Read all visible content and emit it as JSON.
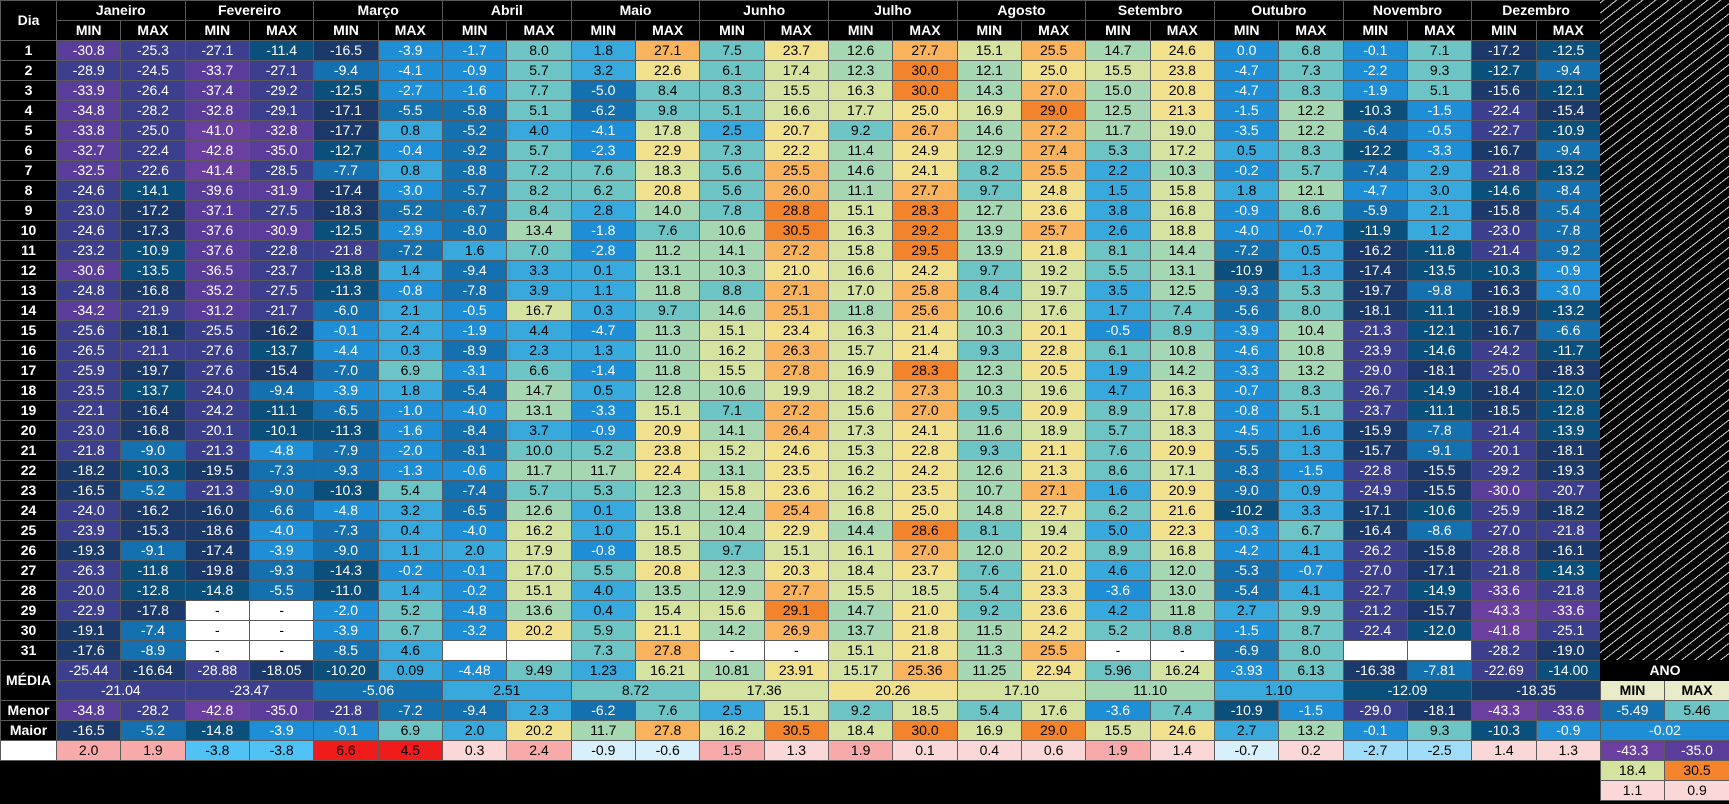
{
  "header": {
    "day_label": "Dia",
    "min_label": "MIN",
    "max_label": "MAX",
    "ano_label": "ANO"
  },
  "months": [
    "Janeiro",
    "Fevereiro",
    "Março",
    "Abril",
    "Maio",
    "Junho",
    "Julho",
    "Agosto",
    "Setembro",
    "Outubro",
    "Novembro",
    "Dezembro"
  ],
  "days": [
    [
      -30.8,
      -25.3,
      -27.1,
      -11.4,
      -16.5,
      -3.9,
      -1.7,
      8.0,
      1.8,
      27.1,
      7.5,
      23.7,
      12.6,
      27.7,
      15.1,
      25.5,
      14.7,
      24.6,
      0.0,
      6.8,
      -0.1,
      7.1,
      -17.2,
      -12.5
    ],
    [
      -28.9,
      -24.5,
      -33.7,
      -27.1,
      -9.4,
      -4.1,
      -0.9,
      5.7,
      3.2,
      22.6,
      6.1,
      17.4,
      12.3,
      30.0,
      12.1,
      25.0,
      15.5,
      23.8,
      -4.7,
      7.3,
      -2.2,
      9.3,
      -12.7,
      -9.4
    ],
    [
      -33.9,
      -26.4,
      -37.4,
      -29.2,
      -12.5,
      -2.7,
      -1.6,
      7.7,
      -5.0,
      8.4,
      8.3,
      15.5,
      16.3,
      30.0,
      14.3,
      27.0,
      15.0,
      20.8,
      -4.7,
      8.3,
      -1.9,
      5.1,
      -15.6,
      -12.1
    ],
    [
      -34.8,
      -28.2,
      -32.8,
      -29.1,
      -17.1,
      -5.5,
      -5.8,
      5.1,
      -6.2,
      9.8,
      5.1,
      16.6,
      17.7,
      25.0,
      16.9,
      29.0,
      12.5,
      21.3,
      -1.5,
      12.2,
      -10.3,
      -1.5,
      -22.4,
      -15.4
    ],
    [
      -33.8,
      -25.0,
      -41.0,
      -32.8,
      -17.7,
      0.8,
      -5.2,
      4.0,
      -4.1,
      17.8,
      2.5,
      20.7,
      9.2,
      26.7,
      14.6,
      27.2,
      11.7,
      19.0,
      -3.5,
      12.2,
      -6.4,
      -0.5,
      -22.7,
      -10.9
    ],
    [
      -32.7,
      -22.4,
      -42.8,
      -35.0,
      -12.7,
      -0.4,
      -9.2,
      5.7,
      -2.3,
      22.9,
      7.3,
      22.2,
      11.4,
      24.9,
      12.9,
      27.4,
      5.3,
      17.2,
      0.5,
      8.3,
      -12.2,
      -3.3,
      -16.7,
      -9.4
    ],
    [
      -32.5,
      -22.6,
      -41.4,
      -28.5,
      -7.7,
      0.8,
      -8.8,
      7.2,
      7.6,
      18.3,
      5.6,
      25.5,
      14.6,
      24.1,
      8.2,
      25.5,
      2.2,
      10.3,
      -0.2,
      5.7,
      -7.4,
      2.9,
      -21.8,
      -13.2
    ],
    [
      -24.6,
      -14.1,
      -39.6,
      -31.9,
      -17.4,
      -3.0,
      -5.7,
      8.2,
      6.2,
      20.8,
      5.6,
      26.0,
      11.1,
      27.7,
      9.7,
      24.8,
      1.5,
      15.8,
      1.8,
      12.1,
      -4.7,
      3.0,
      -14.6,
      -8.4
    ],
    [
      -23.0,
      -17.2,
      -37.1,
      -27.5,
      -18.3,
      -5.2,
      -6.7,
      8.4,
      2.8,
      14.0,
      7.8,
      28.8,
      15.1,
      28.3,
      12.7,
      23.6,
      3.8,
      16.8,
      -0.9,
      8.6,
      -5.9,
      2.1,
      -15.8,
      -5.4
    ],
    [
      -24.6,
      -17.3,
      -37.6,
      -30.9,
      -12.5,
      -2.9,
      -8.0,
      13.4,
      -1.8,
      7.6,
      10.6,
      30.5,
      16.3,
      29.2,
      13.9,
      25.7,
      2.6,
      18.8,
      -4.0,
      -0.7,
      -11.9,
      1.2,
      -23.0,
      -7.8
    ],
    [
      -23.2,
      -10.9,
      -37.6,
      -22.8,
      -21.8,
      -7.2,
      1.6,
      7.0,
      -2.8,
      11.2,
      14.1,
      27.2,
      15.8,
      29.5,
      13.9,
      21.8,
      8.1,
      14.4,
      -7.2,
      0.5,
      -16.2,
      -11.8,
      -21.4,
      -9.2
    ],
    [
      -30.6,
      -13.5,
      -36.5,
      -23.7,
      -13.8,
      1.4,
      -9.4,
      3.3,
      0.1,
      13.1,
      10.3,
      21.0,
      16.6,
      24.2,
      9.7,
      19.2,
      5.5,
      13.1,
      -10.9,
      1.3,
      -17.4,
      -13.5,
      -10.3,
      -0.9
    ],
    [
      -24.8,
      -16.8,
      -35.2,
      -27.5,
      -11.3,
      -0.8,
      -7.8,
      3.9,
      1.1,
      11.8,
      8.8,
      27.1,
      17.0,
      25.8,
      8.4,
      19.7,
      3.5,
      12.5,
      -9.3,
      5.3,
      -19.7,
      -9.8,
      -16.3,
      -3.0
    ],
    [
      -34.2,
      -21.9,
      -31.2,
      -21.7,
      -6.0,
      2.1,
      -0.5,
      16.7,
      0.3,
      9.7,
      14.6,
      25.1,
      11.8,
      25.6,
      10.6,
      17.6,
      1.7,
      7.4,
      -5.6,
      8.0,
      -18.1,
      -11.1,
      -18.9,
      -13.2
    ],
    [
      -25.6,
      -18.1,
      -25.5,
      -16.2,
      -0.1,
      2.4,
      -1.9,
      4.4,
      -4.7,
      11.3,
      15.1,
      23.4,
      16.3,
      21.4,
      10.3,
      20.1,
      -0.5,
      8.9,
      -3.9,
      10.4,
      -21.3,
      -12.1,
      -16.7,
      -6.6
    ],
    [
      -26.5,
      -21.1,
      -27.6,
      -13.7,
      -4.4,
      0.3,
      -8.9,
      2.3,
      1.3,
      11.0,
      16.2,
      26.3,
      15.7,
      21.4,
      9.3,
      22.8,
      6.1,
      10.8,
      -4.6,
      10.8,
      -23.9,
      -14.6,
      -24.2,
      -11.7
    ],
    [
      -25.9,
      -19.7,
      -27.6,
      -15.4,
      -7.0,
      6.9,
      -3.1,
      6.6,
      -1.4,
      11.8,
      15.5,
      27.8,
      16.9,
      28.3,
      12.3,
      20.5,
      1.9,
      14.2,
      -3.3,
      13.2,
      -29.0,
      -18.1,
      -25.0,
      -18.3
    ],
    [
      -23.5,
      -13.7,
      -24.0,
      -9.4,
      -3.9,
      1.8,
      -5.4,
      14.7,
      0.5,
      12.8,
      10.6,
      19.9,
      18.2,
      27.3,
      10.3,
      19.6,
      4.7,
      16.3,
      -0.7,
      8.3,
      -26.7,
      -14.9,
      -18.4,
      -12.0
    ],
    [
      -22.1,
      -16.4,
      -24.2,
      -11.1,
      -6.5,
      -1.0,
      -4.0,
      13.1,
      -3.3,
      15.1,
      7.1,
      27.2,
      15.6,
      27.0,
      9.5,
      20.9,
      8.9,
      17.8,
      -0.8,
      5.1,
      -23.7,
      -11.1,
      -18.5,
      -12.8
    ],
    [
      -23.0,
      -16.8,
      -20.1,
      -10.1,
      -11.3,
      -1.6,
      -8.4,
      3.7,
      -0.9,
      20.9,
      14.1,
      26.4,
      17.3,
      24.1,
      11.6,
      18.9,
      5.7,
      18.3,
      -4.5,
      1.6,
      -15.9,
      -7.8,
      -21.4,
      -13.9
    ],
    [
      -21.8,
      -9.0,
      -21.3,
      -4.8,
      -7.9,
      -2.0,
      -8.1,
      10.0,
      5.2,
      23.8,
      15.2,
      24.6,
      15.3,
      22.8,
      9.3,
      21.1,
      7.6,
      20.9,
      -5.5,
      1.3,
      -15.7,
      -9.1,
      -20.1,
      -18.1
    ],
    [
      -18.2,
      -10.3,
      -19.5,
      -7.3,
      -9.3,
      -1.3,
      -0.6,
      11.7,
      11.7,
      22.4,
      13.1,
      23.5,
      16.2,
      24.2,
      12.6,
      21.3,
      8.6,
      17.1,
      -8.3,
      -1.5,
      -22.8,
      -15.5,
      -29.2,
      -19.3
    ],
    [
      -16.5,
      -5.2,
      -21.3,
      -9.0,
      -10.3,
      5.4,
      -7.4,
      5.7,
      5.3,
      12.3,
      15.8,
      23.6,
      16.2,
      23.5,
      10.7,
      27.1,
      1.6,
      20.9,
      -9.0,
      0.9,
      -24.9,
      -15.5,
      -30.0,
      -20.7
    ],
    [
      -24.0,
      -16.2,
      -16.0,
      -6.6,
      -4.8,
      3.2,
      -6.5,
      12.6,
      0.1,
      13.8,
      12.4,
      25.4,
      16.8,
      25.0,
      14.8,
      22.7,
      6.2,
      21.6,
      -10.2,
      3.3,
      -17.1,
      -10.6,
      -25.9,
      -18.2
    ],
    [
      -23.9,
      -15.3,
      -18.6,
      -4.0,
      -7.3,
      0.4,
      -4.0,
      16.2,
      1.0,
      15.1,
      10.4,
      22.9,
      14.4,
      28.6,
      8.1,
      19.4,
      5.0,
      22.3,
      -0.3,
      6.7,
      -16.4,
      -8.6,
      -27.0,
      -21.8
    ],
    [
      -19.3,
      -9.1,
      -17.4,
      -3.9,
      -9.0,
      1.1,
      2.0,
      17.9,
      -0.8,
      18.5,
      9.7,
      15.1,
      16.1,
      27.0,
      12.0,
      20.2,
      8.9,
      16.8,
      -4.2,
      4.1,
      -26.2,
      -15.8,
      -28.8,
      -16.1
    ],
    [
      -26.3,
      -11.8,
      -19.8,
      -9.3,
      -14.3,
      -0.2,
      -0.1,
      17.0,
      5.5,
      20.8,
      12.3,
      20.3,
      18.4,
      23.7,
      7.6,
      21.0,
      4.6,
      12.0,
      -5.3,
      -0.7,
      -27.0,
      -17.1,
      -21.8,
      -14.3
    ],
    [
      -20.0,
      -12.8,
      -14.8,
      -5.5,
      -11.0,
      1.4,
      -0.2,
      15.1,
      4.0,
      13.5,
      12.9,
      27.7,
      15.5,
      18.5,
      5.4,
      23.3,
      -3.6,
      13.0,
      -5.4,
      4.1,
      -22.7,
      -14.9,
      -33.6,
      -21.8
    ],
    [
      -22.9,
      -17.8,
      "-",
      "-",
      -2.0,
      5.2,
      -4.8,
      13.6,
      0.4,
      15.4,
      15.6,
      29.1,
      14.7,
      21.0,
      9.2,
      23.6,
      4.2,
      11.8,
      2.7,
      9.9,
      -21.2,
      -15.7,
      -43.3,
      -33.6
    ],
    [
      -19.1,
      -7.4,
      "-",
      "-",
      -3.9,
      6.7,
      -3.2,
      20.2,
      5.9,
      21.1,
      14.2,
      26.9,
      13.7,
      21.8,
      11.5,
      24.2,
      5.2,
      8.8,
      -1.5,
      8.7,
      -22.4,
      -12.0,
      -41.8,
      -25.1
    ],
    [
      -17.6,
      -8.9,
      "-",
      "-",
      -8.5,
      4.6,
      "",
      "",
      7.3,
      27.8,
      "-",
      "-",
      15.1,
      21.8,
      11.3,
      25.5,
      "-",
      "-",
      -6.9,
      8.0,
      "",
      "",
      -28.2,
      -19.0
    ]
  ],
  "media": {
    "label": "MÉDIA",
    "minmax": [
      -25.44,
      -16.64,
      -28.88,
      -18.05,
      -10.2,
      0.09,
      -4.48,
      9.49,
      1.23,
      16.21,
      10.81,
      23.91,
      15.17,
      25.36,
      11.25,
      22.94,
      5.96,
      16.24,
      -3.93,
      6.13,
      -16.38,
      -7.81,
      -22.69,
      -14.0
    ],
    "mean": [
      -21.04,
      -23.47,
      -5.06,
      2.51,
      8.72,
      17.36,
      20.26,
      17.1,
      11.1,
      1.1,
      -12.09,
      -18.35
    ]
  },
  "menor": {
    "label": "Menor",
    "values": [
      -34.8,
      -28.2,
      -42.8,
      -35.0,
      -21.8,
      -7.2,
      -9.4,
      2.3,
      -6.2,
      7.6,
      2.5,
      15.1,
      9.2,
      18.5,
      5.4,
      17.6,
      -3.6,
      7.4,
      -10.9,
      -1.5,
      -29.0,
      -18.1,
      -43.3,
      -33.6
    ]
  },
  "maior": {
    "label": "Maior",
    "values": [
      -16.5,
      -5.2,
      -14.8,
      -3.9,
      -0.1,
      6.9,
      2.0,
      20.2,
      11.7,
      27.8,
      16.2,
      30.5,
      18.4,
      30.0,
      16.9,
      29.0,
      15.5,
      24.6,
      2.7,
      13.2,
      -0.1,
      9.3,
      -10.3,
      -0.9
    ]
  },
  "anomaly": {
    "label": "",
    "values": [
      2.0,
      1.9,
      -3.8,
      -3.8,
      6.6,
      4.5,
      0.3,
      2.4,
      -0.9,
      -0.6,
      1.5,
      1.3,
      1.9,
      0.1,
      0.4,
      0.6,
      1.9,
      1.4,
      -0.7,
      0.2,
      -2.7,
      -2.5,
      1.4,
      1.3
    ]
  },
  "ano": {
    "min": -5.49,
    "max": 5.46,
    "mean": -0.02,
    "menor_min": -43.3,
    "menor_max": -35.0,
    "maior_min": 18.4,
    "maior_max": 30.5,
    "anom_min": 1.1,
    "anom_max": 0.9
  }
}
